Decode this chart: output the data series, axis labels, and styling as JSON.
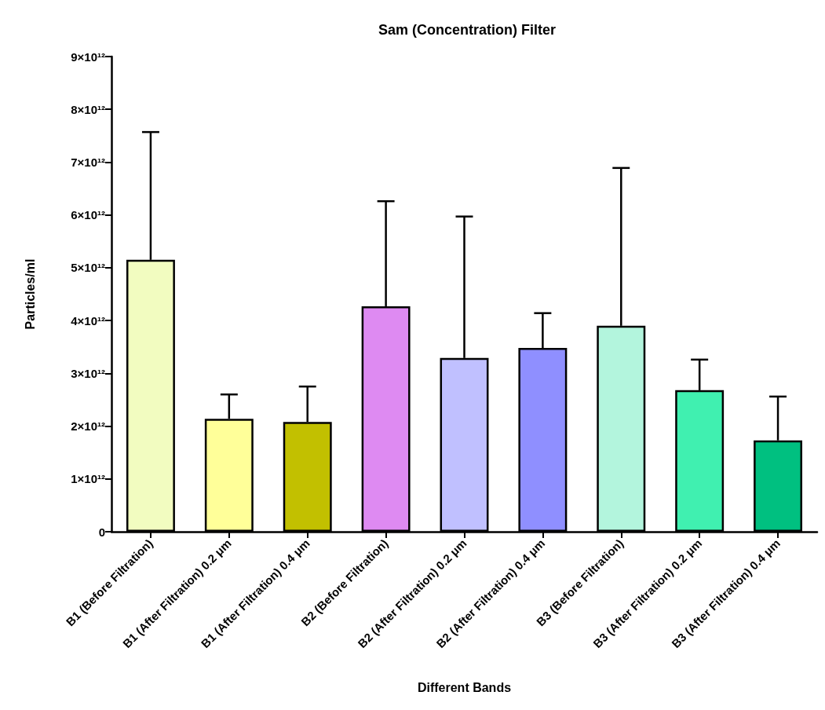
{
  "chart_data": {
    "type": "bar",
    "title": "Sam (Concentration) Filter",
    "xlabel": "Different Bands",
    "ylabel": "Particles/ml",
    "categories": [
      "B1 (Before Filtration)",
      "B1 (After Filtration) 0.2 μm",
      "B1 (After Filtration) 0.4 μm",
      "B2 (Before Filtration)",
      "B2 (After Filtration) 0.2 μm",
      "B2 (After Filtration) 0.4 μm",
      "B3 (Before Filtration)",
      "B3 (After Filtration) 0.2 μm",
      "B3 (After Filtration) 0.4 μm"
    ],
    "values": [
      5150000000000,
      2140000000000,
      2080000000000,
      4270000000000,
      3290000000000,
      3480000000000,
      3900000000000,
      2680000000000,
      1730000000000
    ],
    "errors": [
      [
        5150000000000,
        7570000000000
      ],
      [
        2140000000000,
        2600000000000
      ],
      [
        2080000000000,
        2750000000000
      ],
      [
        4270000000000,
        6260000000000
      ],
      [
        3290000000000,
        5970000000000
      ],
      [
        3480000000000,
        4140000000000
      ],
      [
        3900000000000,
        6890000000000
      ],
      [
        2680000000000,
        3260000000000
      ],
      [
        1730000000000,
        2560000000000
      ]
    ],
    "colors": [
      "#f2fcc0",
      "#ffff99",
      "#c2c000",
      "#de8af2",
      "#c0c0ff",
      "#8f8fff",
      "#b3f5dd",
      "#40f0b0",
      "#00c080"
    ],
    "ylim": [
      0,
      9000000000000
    ],
    "yticks": [
      0,
      {
        "value": 1000000000000,
        "label": "1×10¹²"
      },
      {
        "value": 2000000000000,
        "label": "2×10¹²"
      },
      {
        "value": 3000000000000,
        "label": "3×10¹²"
      },
      {
        "value": 4000000000000,
        "label": "4×10¹²"
      },
      {
        "value": 5000000000000,
        "label": "5×10¹²"
      },
      {
        "value": 6000000000000,
        "label": "6×10¹²"
      },
      {
        "value": 7000000000000,
        "label": "7×10¹²"
      },
      {
        "value": 8000000000000,
        "label": "8×10¹²"
      },
      {
        "value": 9000000000000,
        "label": "9×10¹²"
      }
    ],
    "grid": false
  }
}
